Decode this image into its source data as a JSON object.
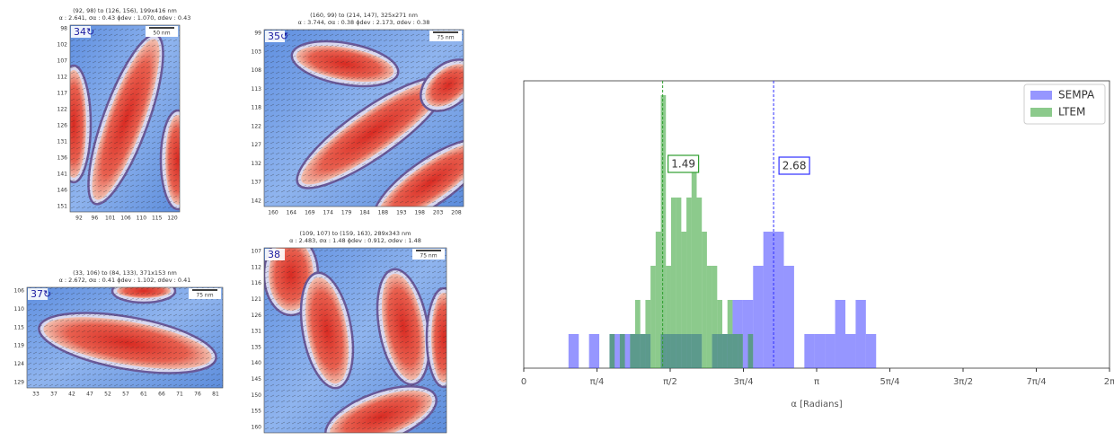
{
  "panels": [
    {
      "header": [
        "(92, 98) to (126, 156), 199x416 nm",
        "α : 2.641, σα : 0.43   ϕdev : 1.070, σdev : 0.43"
      ],
      "label": "34↻",
      "scale": "50 nm",
      "yticks": [
        "98",
        "102",
        "107",
        "112",
        "117",
        "122",
        "126",
        "131",
        "136",
        "141",
        "146",
        "151"
      ],
      "xticks": [
        "92",
        "96",
        "101",
        "106",
        "110",
        "115",
        "120"
      ]
    },
    {
      "header": [
        "(160, 99) to (214, 147), 325x271 nm",
        "α : 3.744, σα : 0.38   ϕdev : 2.173, σdev : 0.38"
      ],
      "label": "35↺",
      "scale": "75 nm",
      "yticks": [
        "99",
        "103",
        "108",
        "113",
        "118",
        "122",
        "127",
        "132",
        "137",
        "142"
      ],
      "xticks": [
        "160",
        "164",
        "169",
        "174",
        "179",
        "184",
        "188",
        "193",
        "198",
        "203",
        "208"
      ]
    },
    {
      "header": [
        "(33, 106) to (84, 133), 371x153 nm",
        "α : 2.672, σα : 0.41   ϕdev : 1.102, σdev : 0.41"
      ],
      "label": "37↻",
      "scale": "75 nm",
      "yticks": [
        "106",
        "110",
        "115",
        "119",
        "124",
        "129"
      ],
      "xticks": [
        "33",
        "37",
        "42",
        "47",
        "52",
        "57",
        "61",
        "66",
        "71",
        "76",
        "81"
      ]
    },
    {
      "header": [
        "(109, 107) to (159, 163), 289x343 nm",
        "α : 2.483, σα : 1.48   ϕdev : 0.912, σdev : 1.48"
      ],
      "label": "38",
      "scale": "75 nm",
      "yticks": [
        "107",
        "112",
        "116",
        "121",
        "126",
        "131",
        "135",
        "140",
        "145",
        "150",
        "155",
        "160"
      ],
      "xticks": []
    }
  ],
  "chart_data": {
    "type": "histogram",
    "xlabel": "α [Radians]",
    "xlim": [
      0,
      6.283185307
    ],
    "ylim": [
      0,
      8.42
    ],
    "xticks": [
      0,
      {
        "value": 0.7853981634,
        "label": "π/4"
      },
      {
        "value": 1.5707963268,
        "label": "π/2"
      },
      {
        "value": 2.3561944902,
        "label": "3π/4"
      },
      {
        "value": 3.1415926536,
        "label": "π"
      },
      {
        "value": 3.926990817,
        "label": "5π/4"
      },
      {
        "value": 4.7123889804,
        "label": "3π/2"
      },
      {
        "value": 5.4977871438,
        "label": "7π/4"
      },
      {
        "value": 6.283185307,
        "label": "2π"
      }
    ],
    "legend": "upper right",
    "series": [
      {
        "name": "SEMPA",
        "color": "#4040ff",
        "bins": [
          0.48,
          0.59,
          0.7,
          0.81,
          0.92,
          1.03,
          1.14,
          1.25,
          1.36,
          1.47,
          1.58,
          1.69,
          1.8,
          1.91,
          2.02,
          2.13,
          2.24,
          2.35,
          2.46,
          2.57,
          2.68,
          2.79,
          2.9,
          3.01,
          3.12,
          3.23,
          3.34,
          3.45,
          3.56,
          3.67,
          3.78
        ],
        "values": [
          1,
          0,
          1,
          0,
          1,
          1,
          1,
          1,
          0,
          1,
          1,
          1,
          1,
          0,
          1,
          1,
          2,
          2,
          3,
          4,
          4,
          3,
          0,
          1,
          1,
          1,
          2,
          1,
          2,
          1
        ]
      },
      {
        "name": "LTEM",
        "color": "#2e9e2e",
        "bins": [
          0.92,
          0.975,
          1.03,
          1.085,
          1.14,
          1.195,
          1.25,
          1.305,
          1.36,
          1.415,
          1.47,
          1.525,
          1.58,
          1.635,
          1.69,
          1.745,
          1.8,
          1.855,
          1.91,
          1.965,
          2.02,
          2.075,
          2.13,
          2.185,
          2.24,
          2.295,
          2.35,
          2.405,
          2.46
        ],
        "values": [
          1,
          0,
          1,
          0,
          1,
          2,
          1,
          2,
          3,
          4,
          8,
          3,
          5,
          5,
          4,
          5,
          6,
          5,
          4,
          3,
          3,
          2,
          1,
          2,
          1,
          1,
          0,
          1
        ]
      }
    ],
    "vlines": [
      {
        "x": 1.49,
        "color": "#2e9e2e"
      },
      {
        "x": 2.68,
        "color": "#3030ff"
      }
    ]
  }
}
